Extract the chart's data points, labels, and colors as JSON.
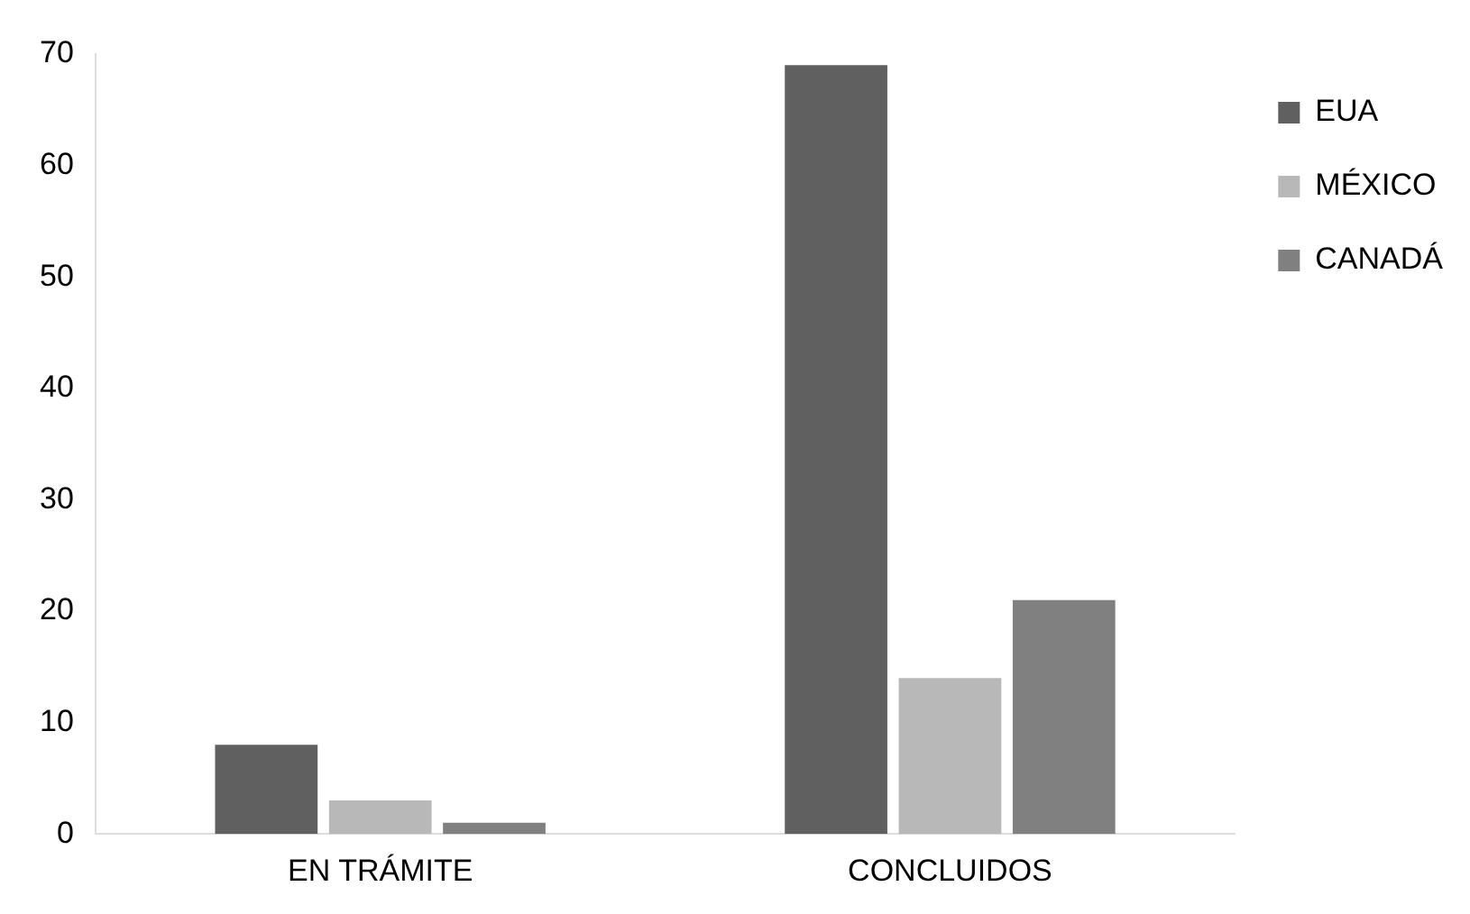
{
  "chart_data": {
    "type": "bar",
    "categories": [
      "EN TRÁMITE",
      "CONCLUIDOS"
    ],
    "series": [
      {
        "name": "EUA",
        "color": "#606060",
        "values": [
          8,
          69
        ]
      },
      {
        "name": "MÉXICO",
        "color": "#b8b8b8",
        "values": [
          3,
          14
        ]
      },
      {
        "name": "CANADÁ",
        "color": "#808080",
        "values": [
          1,
          21
        ]
      }
    ],
    "ylim": [
      0,
      70
    ],
    "yticks": [
      0,
      10,
      20,
      30,
      40,
      50,
      60,
      70
    ],
    "grid": false,
    "legend": "top right"
  }
}
